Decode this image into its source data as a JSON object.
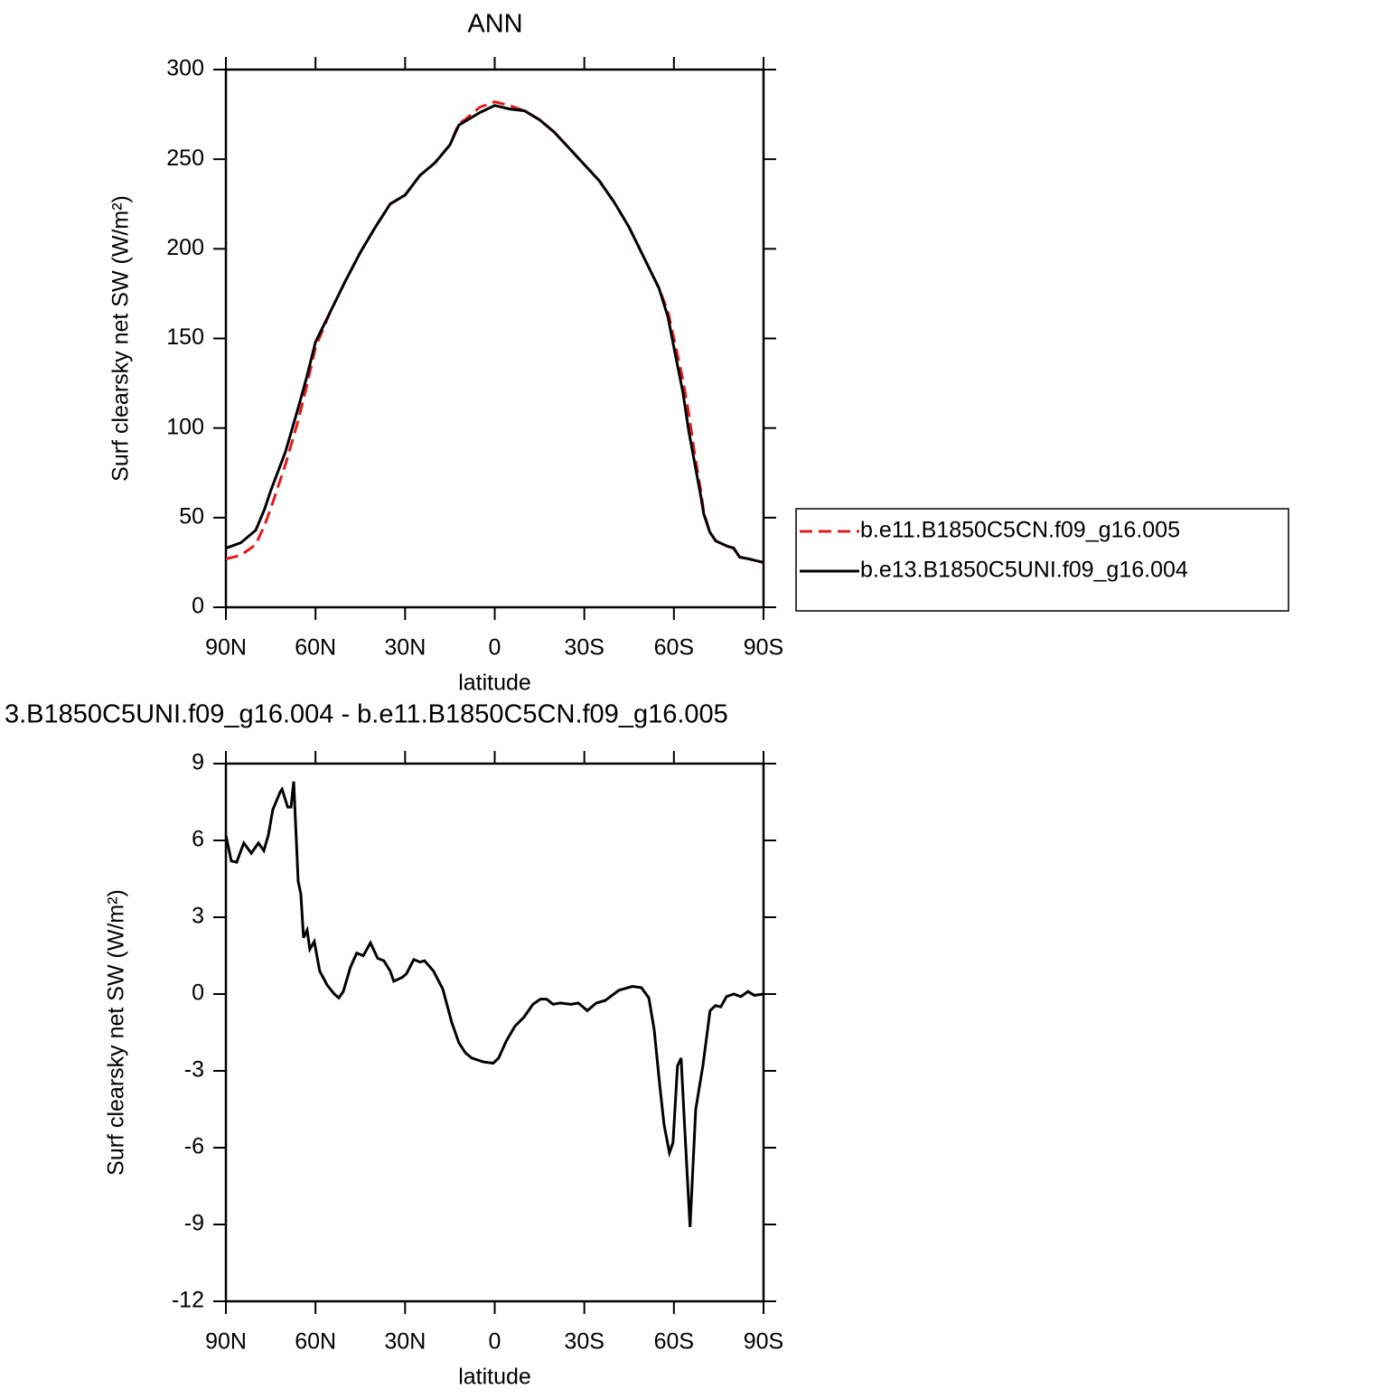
{
  "chart_data": [
    {
      "type": "line",
      "title": "ANN",
      "xlabel": "latitude",
      "ylabel": "Surf clearsky net SW (W/m²)",
      "x": [
        90,
        85,
        80,
        77,
        75,
        70,
        66,
        63,
        60,
        55,
        50,
        45,
        40,
        35,
        30,
        25,
        20,
        15,
        12,
        10,
        5,
        0,
        -5,
        -10,
        -15,
        -20,
        -25,
        -30,
        -35,
        -40,
        -45,
        -50,
        -55,
        -58,
        -60,
        -63,
        -65,
        -67,
        -69,
        -70,
        -72,
        -74,
        -78,
        -80,
        -82,
        -85,
        -90
      ],
      "series": [
        {
          "name": "b.e11.B1850C5CN.f09_g16.005",
          "color": "#e31a1c",
          "style": "dashed",
          "values": [
            27,
            29,
            35,
            46,
            55,
            80,
            103,
            123,
            145,
            165,
            182,
            198,
            212,
            225,
            230,
            241,
            248,
            258,
            270,
            272,
            279,
            282,
            280,
            277,
            272,
            265,
            256,
            247,
            238,
            226,
            212,
            195,
            178,
            165,
            150,
            127,
            108,
            85,
            65,
            53,
            42,
            37,
            34,
            33,
            28,
            27,
            25
          ]
        },
        {
          "name": "b.e13.B1850C5UNI.f09_g16.004",
          "color": "#000000",
          "style": "solid",
          "values": [
            33,
            36,
            43,
            55,
            65,
            87,
            110,
            128,
            148,
            165,
            182,
            198,
            212,
            225,
            230,
            241,
            248,
            258,
            269,
            271,
            276,
            280,
            278,
            277,
            272,
            265,
            256,
            247,
            238,
            226,
            212,
            195,
            178,
            162,
            145,
            120,
            98,
            80,
            62,
            52,
            42,
            37,
            34,
            33,
            28,
            27,
            25
          ]
        }
      ],
      "xlim": [
        90,
        -90
      ],
      "xticks": [
        {
          "value": 90,
          "label": "90N"
        },
        {
          "value": 60,
          "label": "60N"
        },
        {
          "value": 30,
          "label": "30N"
        },
        0,
        {
          "value": -30,
          "label": "30S"
        },
        {
          "value": -60,
          "label": "60S"
        },
        {
          "value": -90,
          "label": "90S"
        }
      ],
      "ylim": [
        0,
        300
      ],
      "yticks": [
        0,
        50,
        100,
        150,
        200,
        250,
        300
      ],
      "legend": "right"
    },
    {
      "type": "line",
      "title": "3.B1850C5UNI.f09_g16.004 - b.e11.B1850C5CN.f09_g16.005",
      "xlabel": "latitude",
      "ylabel": "Surf clearsky net SW (W/m²)",
      "x": [
        90,
        88.2,
        86.4,
        84,
        81.5,
        79.1,
        77.3,
        75.8,
        74.3,
        71.8,
        71.2,
        69.3,
        68.2,
        67.3,
        65.8,
        64.9,
        64,
        62.8,
        61.9,
        60.4,
        58.6,
        56.1,
        53.7,
        52.2,
        50.7,
        48.3,
        46.2,
        44,
        41.6,
        39.2,
        37.1,
        35,
        33.8,
        31,
        29.5,
        27.1,
        25,
        23.5,
        20.5,
        17.4,
        14.4,
        12,
        9.8,
        7.7,
        3.8,
        0.5,
        -1.3,
        -3.8,
        -6.8,
        -9.8,
        -12.8,
        -15.3,
        -17.4,
        -19.5,
        -21.9,
        -25.6,
        -28,
        -31,
        -34,
        -37,
        -41.6,
        -46.1,
        -49.1,
        -51.6,
        -53.4,
        -55.2,
        -56.7,
        -58.5,
        -59.7,
        -61.2,
        -62.4,
        -63.6,
        -65.4,
        -67.3,
        -69.7,
        -72.1,
        -73.9,
        -75.7,
        -77.6,
        -80,
        -82.4,
        -84.8,
        -86.9,
        -90
      ],
      "series": [
        {
          "color": "#000000",
          "style": "solid",
          "values": [
            6.2,
            5.2,
            5.15,
            5.9,
            5.5,
            5.9,
            5.6,
            6.2,
            7.2,
            7.9,
            8.0,
            7.3,
            7.3,
            8.3,
            4.4,
            3.9,
            2.2,
            2.5,
            1.75,
            2.05,
            0.9,
            0.35,
            0,
            -0.15,
            0.1,
            1.05,
            1.6,
            1.5,
            2.0,
            1.4,
            1.3,
            0.9,
            0.5,
            0.65,
            0.8,
            1.35,
            1.25,
            1.3,
            0.9,
            0.2,
            -1.1,
            -1.9,
            -2.3,
            -2.5,
            -2.65,
            -2.7,
            -2.5,
            -1.85,
            -1.25,
            -0.9,
            -0.4,
            -0.2,
            -0.2,
            -0.4,
            -0.35,
            -0.4,
            -0.35,
            -0.65,
            -0.35,
            -0.25,
            0.15,
            0.3,
            0.25,
            -0.15,
            -1.4,
            -3.5,
            -5.1,
            -6.2,
            -5.8,
            -2.8,
            -2.5,
            -5.2,
            -9.1,
            -4.5,
            -2.8,
            -0.65,
            -0.45,
            -0.5,
            -0.1,
            0,
            -0.1,
            0.1,
            -0.05,
            0
          ]
        }
      ],
      "xlim": [
        90,
        -90
      ],
      "xticks": [
        {
          "value": 90,
          "label": "90N"
        },
        {
          "value": 60,
          "label": "60N"
        },
        {
          "value": 30,
          "label": "30N"
        },
        0,
        {
          "value": -30,
          "label": "30S"
        },
        {
          "value": -60,
          "label": "60S"
        },
        {
          "value": -90,
          "label": "90S"
        }
      ],
      "ylim": [
        -12,
        9
      ],
      "yticks": [
        -12,
        -9,
        -6,
        -3,
        0,
        3,
        6,
        9
      ]
    }
  ]
}
